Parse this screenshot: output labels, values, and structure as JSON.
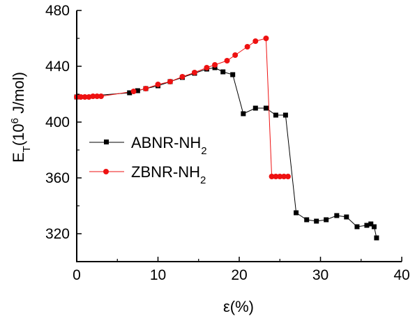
{
  "chart_data": {
    "type": "line",
    "xlabel": "ε(%)",
    "ylabel": "E_T(10^6 J/mol)",
    "ylabel_parts": {
      "base": "E",
      "sub": "T",
      "open": "(10",
      "sup": "6",
      "rest": " J/mol)"
    },
    "xlim": [
      0,
      40
    ],
    "ylim": [
      300,
      480
    ],
    "xticks": [
      0,
      10,
      20,
      30,
      40
    ],
    "yticks": [
      320,
      360,
      400,
      440,
      480
    ],
    "grid": false,
    "legend_position": "middle-left",
    "series": [
      {
        "name": "ABNR-NH2",
        "name_parts": {
          "base": "ABNR-NH",
          "sub": "2"
        },
        "color": "#000000",
        "marker": "square",
        "x": [
          0,
          6.5,
          7.5,
          8.5,
          10,
          11.5,
          13,
          14.5,
          16,
          17,
          18,
          19.2,
          20.5,
          22,
          23.3,
          24.5,
          25.7,
          27,
          28.3,
          29.5,
          30.7,
          32,
          33.2,
          34.5,
          35.7,
          36.2,
          36.6,
          36.9
        ],
        "y": [
          418,
          421,
          422.5,
          424,
          426,
          429,
          432,
          435,
          438,
          439,
          436,
          434,
          406,
          410,
          410,
          405,
          405,
          335,
          330,
          329,
          330,
          333,
          332,
          325,
          326,
          327,
          325,
          317
        ]
      },
      {
        "name": "ZBNR-NH2",
        "name_parts": {
          "base": "ZBNR-NH",
          "sub": "2"
        },
        "color": "#ee1111",
        "marker": "circle",
        "x": [
          0,
          0.5,
          1,
          1.5,
          2,
          2.5,
          3,
          7,
          8.5,
          10,
          11.5,
          13,
          14.5,
          16,
          17,
          18.5,
          19.5,
          21,
          22,
          23.3,
          24,
          24.5,
          25,
          25.5,
          26
        ],
        "y": [
          418,
          418,
          418,
          418,
          418.5,
          418.5,
          418.5,
          422,
          424,
          427,
          429,
          432.5,
          435.5,
          439,
          441,
          444,
          448,
          454,
          458,
          460,
          361,
          361,
          361,
          361,
          361
        ]
      }
    ]
  }
}
